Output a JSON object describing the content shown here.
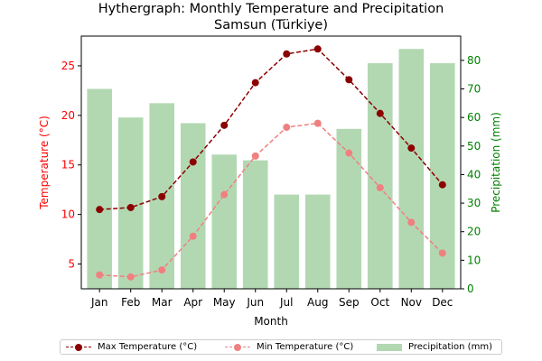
{
  "chart_data": {
    "type": "bar+line",
    "title": "Hythergraph: Monthly Temperature and Precipitation",
    "subtitle": "Samsun (Türkiye)",
    "xlabel": "Month",
    "ylabel_left": "Temperature (°C)",
    "ylabel_right": "Precipitation (mm)",
    "categories": [
      "Jan",
      "Feb",
      "Mar",
      "Apr",
      "May",
      "Jun",
      "Jul",
      "Aug",
      "Sep",
      "Oct",
      "Nov",
      "Dec"
    ],
    "ylim_left": [
      2.5,
      28.0
    ],
    "yticks_left": [
      5,
      10,
      15,
      20,
      25
    ],
    "ylim_right": [
      0,
      88.5
    ],
    "yticks_right": [
      0,
      10,
      20,
      30,
      40,
      50,
      60,
      70,
      80
    ],
    "series": [
      {
        "name": "Max Temperature (°C)",
        "type": "line",
        "axis": "left",
        "color": "#8b0000",
        "values": [
          10.5,
          10.7,
          11.8,
          15.3,
          19.0,
          23.3,
          26.2,
          26.7,
          23.6,
          20.2,
          16.7,
          13.0
        ]
      },
      {
        "name": "Min Temperature (°C)",
        "type": "line",
        "axis": "left",
        "color": "#f08080",
        "values": [
          3.9,
          3.7,
          4.4,
          7.8,
          12.0,
          15.9,
          18.8,
          19.2,
          16.2,
          12.7,
          9.2,
          6.1
        ]
      },
      {
        "name": "Precipitation (mm)",
        "type": "bar",
        "axis": "right",
        "color": "#b2d8b2",
        "values": [
          70,
          60,
          65,
          58,
          47,
          45,
          33,
          33,
          56,
          79,
          84,
          79
        ]
      }
    ],
    "legend_position": "bottom-center",
    "grid": false
  },
  "colors": {
    "left_axis": "#ff0000",
    "right_axis": "#008000"
  }
}
